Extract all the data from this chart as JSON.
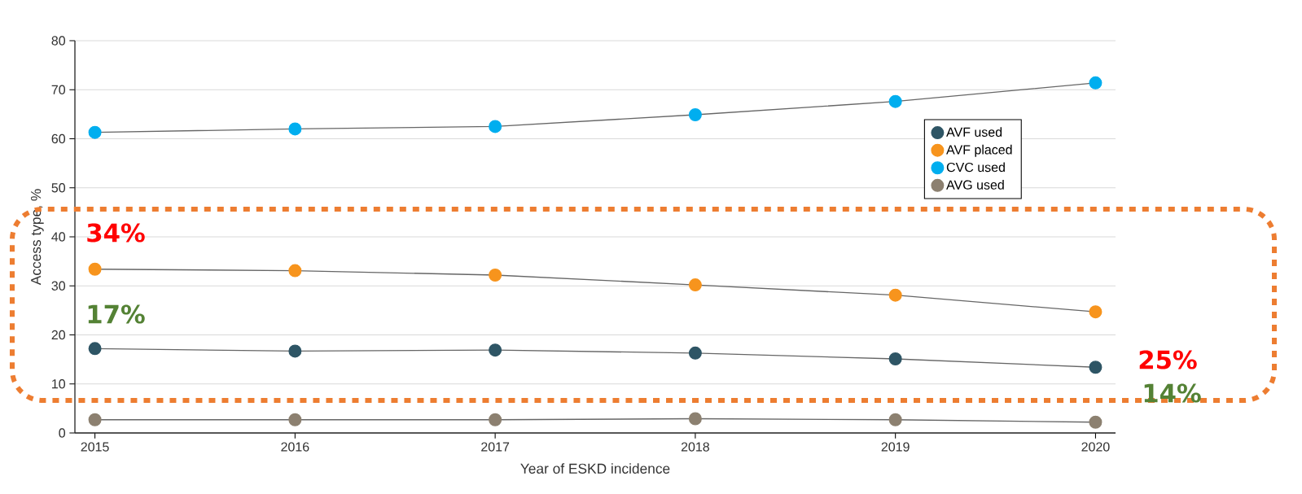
{
  "chart_data": {
    "type": "line",
    "xlabel": "Year of ESKD incidence",
    "ylabel": "Access type, %",
    "x": [
      2015,
      2016,
      2017,
      2018,
      2019,
      2020
    ],
    "series": [
      {
        "name": "AVF used",
        "color": "#2e5565",
        "values": [
          17.2,
          16.7,
          16.9,
          16.3,
          15.1,
          13.4
        ]
      },
      {
        "name": "AVF placed",
        "color": "#f7941d",
        "values": [
          33.4,
          33.1,
          32.2,
          30.2,
          28.1,
          24.7
        ]
      },
      {
        "name": "CVC used",
        "color": "#00aeef",
        "values": [
          61.3,
          62.0,
          62.5,
          64.9,
          67.6,
          71.4
        ]
      },
      {
        "name": "AVG used",
        "color": "#8c8070",
        "values": [
          2.7,
          2.7,
          2.7,
          2.9,
          2.7,
          2.2
        ]
      }
    ],
    "xlim": [
      2014.9,
      2020.1
    ],
    "ylim": [
      0,
      80
    ],
    "xticks": [
      2015,
      2016,
      2017,
      2018,
      2019,
      2020
    ],
    "yticks": [
      0,
      10,
      20,
      30,
      40,
      50,
      60,
      70,
      80
    ],
    "grid": "y",
    "legend": "right",
    "marker": "circle",
    "annotations": [
      "34%",
      "17%",
      "25%",
      "14%"
    ]
  }
}
